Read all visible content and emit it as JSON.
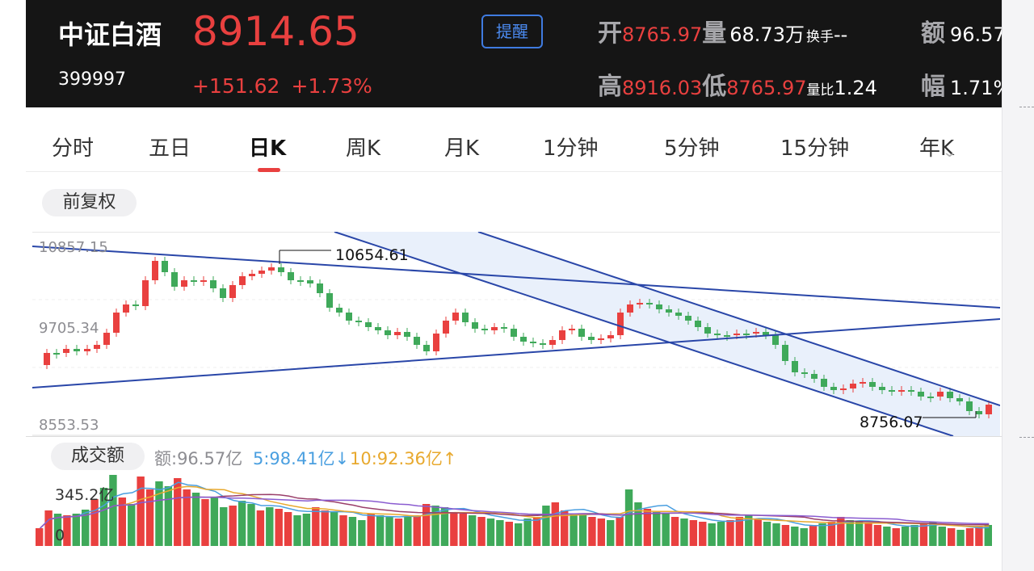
{
  "header": {
    "name": "中证白酒",
    "code": "399997",
    "price": "8914.65",
    "change": "+151.62",
    "change_pct": "+1.73%",
    "remind_label": "提醒"
  },
  "quotes": {
    "open_key": "开",
    "open_val": "8765.97",
    "volume_key": "量",
    "volume_val": "68.73万",
    "turnover_key": "换手",
    "turnover_val": "--",
    "amount_key": "额",
    "amount_val": "96.57",
    "high_key": "高",
    "high_val": "8916.03",
    "low_key": "低",
    "low_val": "8765.97",
    "volratio_key": "量比",
    "volratio_val": "1.24",
    "range_key": "幅",
    "range_val": "1.71%"
  },
  "tabs": [
    {
      "label": "分时"
    },
    {
      "label": "五日"
    },
    {
      "label": "日K"
    },
    {
      "label": "周K"
    },
    {
      "label": "月K"
    },
    {
      "label": "1分钟"
    },
    {
      "label": "5分钟"
    },
    {
      "label": "15分钟"
    },
    {
      "label": "年K"
    }
  ],
  "adjust_label": "前复权",
  "kline": {
    "y_labels": [
      "10857.15",
      "9705.34",
      "8553.53"
    ],
    "high_marker": "10654.61",
    "low_marker": "8756.07",
    "colors": {
      "up": "#e9403f",
      "down": "#3fa95a",
      "trendline": "#2946a8",
      "channel_fill": "#e9f0fb"
    }
  },
  "volume": {
    "pill_label": "成交额",
    "amount": "额:96.57亿",
    "ma5": "5:98.41亿",
    "ma5_arrow": "↓",
    "ma10": "10:92.36亿",
    "ma10_arrow": "↑",
    "max_label": "345.2亿",
    "zero_label": "0",
    "colors": {
      "ma5": "#4a9fe0",
      "ma10": "#e8a92e"
    }
  }
}
